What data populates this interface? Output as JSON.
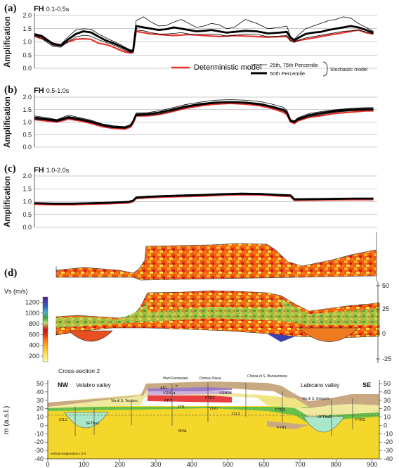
{
  "chart_data": [
    {
      "type": "line",
      "panel_label": "(a)",
      "title": "FH 0.1-0.5s",
      "ylabel": "Amplification",
      "ylim": [
        0.0,
        2.0
      ],
      "yticks": [
        "0.0",
        "0.5",
        "1.0",
        "1.5",
        "2.0"
      ],
      "grid": true,
      "legend": {
        "deterministic": "Deterministic model",
        "p25_75": "25th, 75th Percentile",
        "p50": "50th Percentile",
        "group": "Stochastic model"
      },
      "x": [
        0,
        20,
        50,
        70,
        90,
        110,
        130,
        150,
        170,
        190,
        210,
        225,
        240,
        255,
        262,
        270,
        290,
        310,
        330,
        350,
        370,
        390,
        410,
        430,
        450,
        470,
        490,
        510,
        530,
        560,
        590,
        620,
        650,
        670,
        680,
        690,
        700,
        720,
        740,
        760,
        780,
        800,
        820,
        840,
        860,
        880,
        900
      ],
      "series": [
        {
          "name": "Deterministic",
          "values": [
            1.22,
            1.12,
            0.95,
            0.88,
            1.0,
            1.1,
            1.12,
            1.1,
            0.95,
            0.9,
            0.8,
            0.7,
            0.62,
            0.58,
            0.6,
            1.4,
            1.35,
            1.3,
            1.28,
            1.26,
            1.24,
            1.26,
            1.28,
            1.26,
            1.24,
            1.22,
            1.2,
            1.22,
            1.24,
            1.22,
            1.2,
            1.18,
            1.2,
            1.2,
            1.05,
            1.0,
            1.05,
            1.1,
            1.15,
            1.2,
            1.25,
            1.3,
            1.35,
            1.4,
            1.45,
            1.35,
            1.3
          ]
        },
        {
          "name": "25th Percentile",
          "values": [
            1.22,
            1.12,
            0.82,
            0.8,
            1.02,
            1.18,
            1.25,
            1.22,
            1.08,
            0.98,
            0.88,
            0.78,
            0.68,
            0.6,
            0.62,
            1.45,
            1.42,
            1.35,
            1.3,
            1.3,
            1.32,
            1.35,
            1.3,
            1.28,
            1.28,
            1.3,
            1.28,
            1.22,
            1.24,
            1.3,
            1.28,
            1.2,
            1.22,
            1.24,
            1.05,
            0.98,
            1.05,
            1.15,
            1.2,
            1.25,
            1.3,
            1.35,
            1.4,
            1.42,
            1.45,
            1.38,
            1.3
          ]
        },
        {
          "name": "50th Percentile",
          "values": [
            1.28,
            1.2,
            0.9,
            0.86,
            1.1,
            1.3,
            1.4,
            1.36,
            1.2,
            1.05,
            0.95,
            0.85,
            0.75,
            0.65,
            0.66,
            1.6,
            1.55,
            1.5,
            1.45,
            1.48,
            1.55,
            1.5,
            1.45,
            1.4,
            1.42,
            1.45,
            1.4,
            1.35,
            1.38,
            1.42,
            1.4,
            1.32,
            1.35,
            1.38,
            1.15,
            1.05,
            1.15,
            1.3,
            1.35,
            1.38,
            1.45,
            1.5,
            1.55,
            1.6,
            1.55,
            1.45,
            1.35
          ]
        },
        {
          "name": "75th Percentile",
          "values": [
            1.32,
            1.25,
            0.95,
            0.9,
            1.2,
            1.45,
            1.5,
            1.48,
            1.3,
            1.15,
            1.02,
            0.92,
            0.8,
            0.7,
            0.7,
            1.8,
            1.95,
            1.75,
            1.6,
            1.62,
            1.75,
            1.85,
            1.7,
            1.55,
            1.6,
            1.7,
            1.65,
            1.5,
            1.55,
            1.85,
            1.7,
            1.5,
            1.55,
            1.6,
            1.2,
            1.1,
            1.25,
            1.5,
            1.6,
            1.7,
            1.8,
            1.85,
            1.95,
            1.9,
            1.7,
            1.55,
            1.4
          ]
        }
      ]
    },
    {
      "type": "line",
      "panel_label": "(b)",
      "title": "FH 0.5-1.0s",
      "ylabel": "Amplification",
      "ylim": [
        0.0,
        2.0
      ],
      "yticks": [
        "0.0",
        "0.5",
        "1.0",
        "1.5",
        "2.0"
      ],
      "grid": true,
      "x": [
        0,
        30,
        60,
        90,
        120,
        150,
        180,
        210,
        240,
        255,
        262,
        270,
        300,
        330,
        360,
        400,
        440,
        480,
        520,
        560,
        600,
        630,
        660,
        670,
        680,
        690,
        700,
        730,
        760,
        800,
        840,
        880,
        900
      ],
      "series": [
        {
          "name": "Deterministic",
          "values": [
            1.1,
            1.05,
            1.0,
            1.12,
            1.05,
            0.95,
            0.82,
            0.75,
            0.72,
            0.8,
            0.95,
            1.25,
            1.25,
            1.3,
            1.4,
            1.55,
            1.65,
            1.72,
            1.75,
            1.72,
            1.65,
            1.55,
            1.4,
            1.3,
            1.0,
            0.95,
            1.05,
            1.2,
            1.25,
            1.35,
            1.4,
            1.45,
            1.45
          ]
        },
        {
          "name": "25th Percentile",
          "values": [
            1.12,
            1.08,
            1.02,
            1.15,
            1.08,
            0.98,
            0.85,
            0.78,
            0.75,
            0.82,
            0.98,
            1.25,
            1.28,
            1.32,
            1.42,
            1.58,
            1.68,
            1.75,
            1.78,
            1.75,
            1.68,
            1.58,
            1.45,
            1.35,
            1.02,
            0.98,
            1.08,
            1.22,
            1.3,
            1.4,
            1.45,
            1.48,
            1.48
          ]
        },
        {
          "name": "50th Percentile",
          "values": [
            1.18,
            1.12,
            1.06,
            1.2,
            1.12,
            1.02,
            0.88,
            0.8,
            0.78,
            0.86,
            1.02,
            1.3,
            1.32,
            1.38,
            1.48,
            1.62,
            1.72,
            1.78,
            1.8,
            1.78,
            1.72,
            1.62,
            1.5,
            1.4,
            1.05,
            1.0,
            1.12,
            1.28,
            1.36,
            1.45,
            1.5,
            1.52,
            1.52
          ]
        },
        {
          "name": "75th Percentile",
          "values": [
            1.25,
            1.18,
            1.1,
            1.28,
            1.18,
            1.08,
            0.93,
            0.85,
            0.82,
            0.9,
            1.06,
            1.36,
            1.38,
            1.45,
            1.55,
            1.7,
            1.8,
            1.88,
            1.9,
            1.88,
            1.82,
            1.72,
            1.6,
            1.48,
            1.1,
            1.05,
            1.18,
            1.35,
            1.42,
            1.5,
            1.55,
            1.58,
            1.58
          ]
        }
      ]
    },
    {
      "type": "line",
      "panel_label": "(c)",
      "title": "FH 1.0-2.0s",
      "ylabel": "Amplification",
      "ylim": [
        0.0,
        2.0
      ],
      "yticks": [
        "0.0",
        "0.5",
        "1.0",
        "1.5",
        "2.0"
      ],
      "grid": true,
      "x": [
        0,
        50,
        100,
        150,
        200,
        250,
        262,
        270,
        300,
        350,
        400,
        450,
        500,
        550,
        600,
        650,
        680,
        690,
        700,
        750,
        800,
        850,
        900
      ],
      "series": [
        {
          "name": "Deterministic",
          "values": [
            0.9,
            0.88,
            0.88,
            0.9,
            0.92,
            0.95,
            1.0,
            1.12,
            1.15,
            1.18,
            1.2,
            1.22,
            1.25,
            1.27,
            1.26,
            1.22,
            1.2,
            1.05,
            1.05,
            1.06,
            1.07,
            1.08,
            1.08
          ]
        },
        {
          "name": "25th Percentile",
          "values": [
            0.92,
            0.9,
            0.9,
            0.92,
            0.94,
            0.97,
            1.02,
            1.14,
            1.17,
            1.2,
            1.22,
            1.24,
            1.27,
            1.29,
            1.28,
            1.24,
            1.22,
            1.07,
            1.07,
            1.08,
            1.09,
            1.1,
            1.1
          ]
        },
        {
          "name": "50th Percentile",
          "values": [
            0.94,
            0.92,
            0.92,
            0.94,
            0.96,
            0.99,
            1.04,
            1.16,
            1.19,
            1.22,
            1.24,
            1.26,
            1.29,
            1.31,
            1.3,
            1.26,
            1.24,
            1.09,
            1.09,
            1.1,
            1.11,
            1.12,
            1.12
          ]
        },
        {
          "name": "75th Percentile",
          "values": [
            0.96,
            0.94,
            0.94,
            0.96,
            0.98,
            1.01,
            1.06,
            1.18,
            1.21,
            1.24,
            1.26,
            1.28,
            1.31,
            1.33,
            1.32,
            1.28,
            1.26,
            1.11,
            1.11,
            1.12,
            1.13,
            1.14,
            1.14
          ]
        }
      ]
    },
    {
      "type": "heatmap",
      "panel_label": "(d)",
      "colorbar_label": "Vs (m/s)",
      "colorbar_ticks": [
        "200",
        "400",
        "600",
        "800",
        "1000",
        "1200"
      ],
      "right_axis_ticks": [
        "50",
        "25",
        "0",
        "-25"
      ],
      "colorbar_colors": [
        "#fff9b0",
        "#ffe24a",
        "#ffb020",
        "#ff7a10",
        "#f04010",
        "#c81818",
        "#9ad04a",
        "#3ca43c",
        "#4ab0c8",
        "#2a60c0",
        "#4030a0",
        "#5a2090"
      ]
    },
    {
      "type": "area",
      "title": "Cross-section 2",
      "ylabel": "m (a.s.l.)",
      "ylim": [
        -40,
        55
      ],
      "xlim": [
        0,
        920
      ],
      "xticks": [
        "0",
        "100",
        "200",
        "300",
        "400",
        "500",
        "600",
        "700",
        "800",
        "900"
      ],
      "yticks_left": [
        "50",
        "40",
        "30",
        "20",
        "10",
        "0",
        "-10",
        "-20",
        "-30",
        "-40"
      ],
      "yticks_right": [
        "50",
        "40",
        "30",
        "20",
        "10",
        "0",
        "-10",
        "-20",
        "-30",
        "-40"
      ],
      "labels": {
        "nw": "NW",
        "se": "SE",
        "velabro": "Velabro valley",
        "labicano": "Labicano valley",
        "teodoro": "Via di S. Teodoro",
        "gregorio": "Via di S. Gregorio",
        "horti": "Horti Farnesiani",
        "domus": "Domus Flavia",
        "chiesa": "Chiesa di S. Bonaventura",
        "exag": "vertical exageration x 2.6"
      },
      "unit_labels": [
        "AEL",
        "h",
        "VSN1a",
        "VSN1b",
        "PPT",
        "FTR2",
        "PTI",
        "VGU",
        "CIL1",
        "CIL2",
        "FTR3",
        "FTR1",
        "SFTba2",
        "SFTba3",
        "MVA",
        "FTR2"
      ]
    }
  ]
}
